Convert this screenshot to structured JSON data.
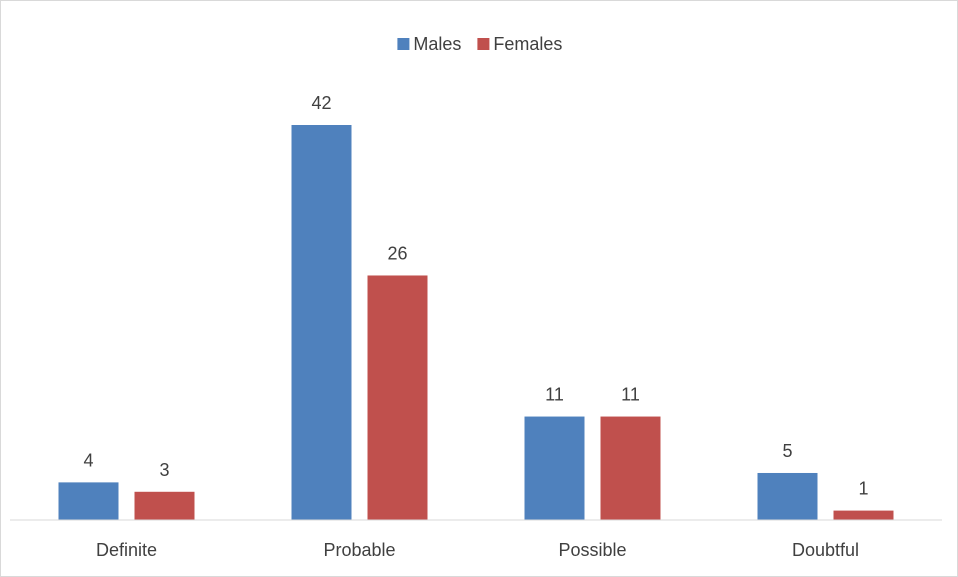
{
  "chart_data": {
    "type": "bar",
    "categories": [
      "Definite",
      "Probable",
      "Possible",
      "Doubtful"
    ],
    "series": [
      {
        "name": "Males",
        "values": [
          4,
          42,
          11,
          5
        ],
        "color": "#4f81bd"
      },
      {
        "name": "Females",
        "values": [
          3,
          26,
          11,
          1
        ],
        "color": "#c0504d"
      }
    ],
    "ylim": [
      0,
      42
    ],
    "grid": false,
    "legend": "top-center",
    "data_labels": true
  }
}
